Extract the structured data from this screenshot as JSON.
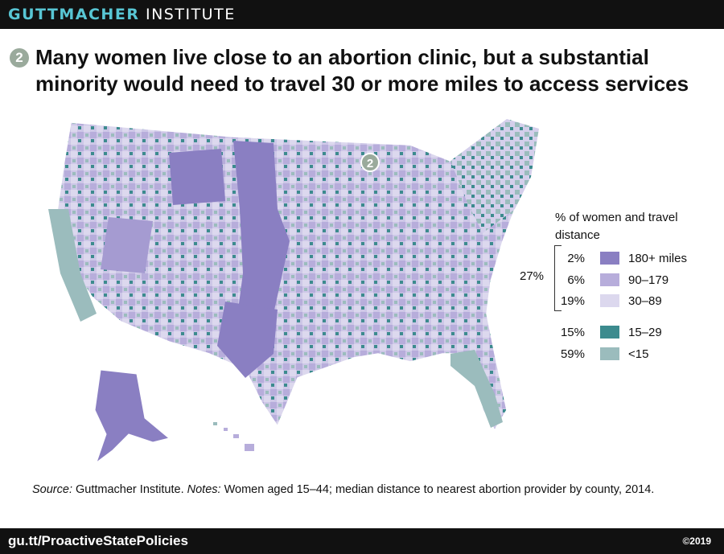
{
  "header": {
    "brand_bold": "GUTTMACHER",
    "brand_rest": " INSTITUTE"
  },
  "title": {
    "badge": "2",
    "text": "Many women live close to an abortion clinic, but a substantial minority would need to travel 30 or more miles to access services"
  },
  "map": {
    "marker": "2",
    "icon": "us-county-choropleth-map"
  },
  "legend": {
    "title": "% of women and travel distance",
    "group_total": "27%",
    "items": [
      {
        "pct": "2%",
        "label": "180+ miles",
        "color": "#8a7fc2"
      },
      {
        "pct": "6%",
        "label": "90–179",
        "color": "#b7addb"
      },
      {
        "pct": "19%",
        "label": "30–89",
        "color": "#dcd8ee"
      },
      {
        "pct": "15%",
        "label": "15–29",
        "color": "#3c8b8e"
      },
      {
        "pct": "59%",
        "label": "<15",
        "color": "#9bbcbd"
      }
    ]
  },
  "note": {
    "source_label": "Source:",
    "source_text": " Guttmacher Institute. ",
    "notes_label": "Notes:",
    "notes_text": " Women aged 15–44; median distance to nearest abortion provider by county, 2014."
  },
  "footer": {
    "url": "gu.tt/ProactiveStatePolicies",
    "copyright": "©2019"
  }
}
